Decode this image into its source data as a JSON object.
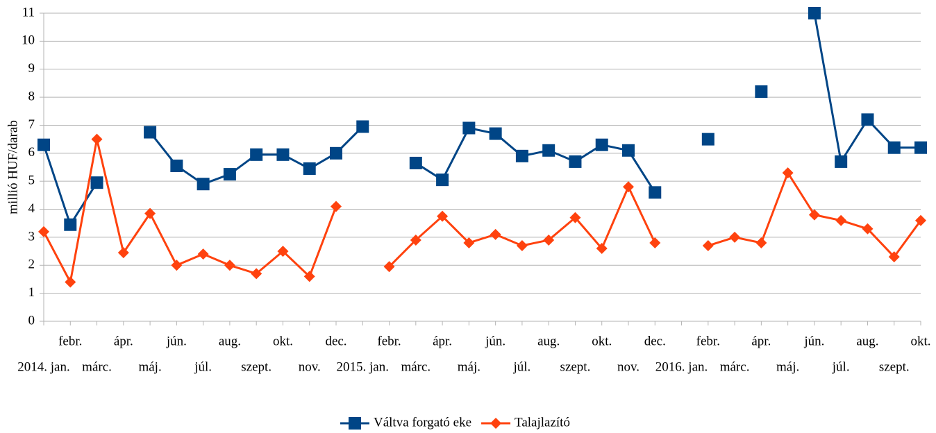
{
  "chart_data": {
    "type": "line",
    "y_label": "millió HUF/darab",
    "categories": [
      "2014. jan.",
      "febr.",
      "márc.",
      "ápr.",
      "máj.",
      "jún.",
      "júl.",
      "aug.",
      "szept.",
      "okt.",
      "nov.",
      "dec.",
      "2015. jan.",
      "febr.",
      "márc.",
      "ápr.",
      "máj.",
      "jún.",
      "júl.",
      "aug.",
      "szept.",
      "okt.",
      "nov.",
      "dec.",
      "2016. jan.",
      "febr.",
      "márc.",
      "ápr.",
      "máj.",
      "jún.",
      "júl.",
      "aug.",
      "szept.",
      "okt."
    ],
    "series": [
      {
        "name": "Váltva forgató eke",
        "color": "#004586",
        "marker": "square",
        "values": [
          6.3,
          3.45,
          4.95,
          null,
          6.75,
          5.55,
          4.9,
          5.25,
          5.95,
          5.95,
          5.45,
          6.0,
          6.95,
          null,
          5.65,
          5.05,
          6.9,
          6.7,
          5.9,
          6.1,
          5.7,
          6.3,
          6.1,
          4.6,
          null,
          6.5,
          null,
          8.2,
          null,
          11,
          5.7,
          7.2,
          6.2,
          6.2
        ]
      },
      {
        "name": "Talajlazító",
        "color": "#ff420e",
        "marker": "diamond",
        "values": [
          3.2,
          1.4,
          6.5,
          2.45,
          3.85,
          2.0,
          2.4,
          2.0,
          1.7,
          2.5,
          1.6,
          4.1,
          null,
          1.95,
          2.9,
          3.75,
          2.8,
          3.1,
          2.7,
          2.9,
          3.7,
          2.6,
          4.8,
          2.8,
          null,
          2.7,
          3.0,
          2.8,
          5.3,
          3.8,
          3.6,
          3.3,
          2.3,
          3.6
        ]
      }
    ],
    "ylim": [
      0,
      11
    ],
    "yticks": [
      0,
      1,
      2,
      3,
      4,
      5,
      6,
      7,
      8,
      9,
      10,
      11
    ],
    "grid": true,
    "legend": "bottom"
  }
}
